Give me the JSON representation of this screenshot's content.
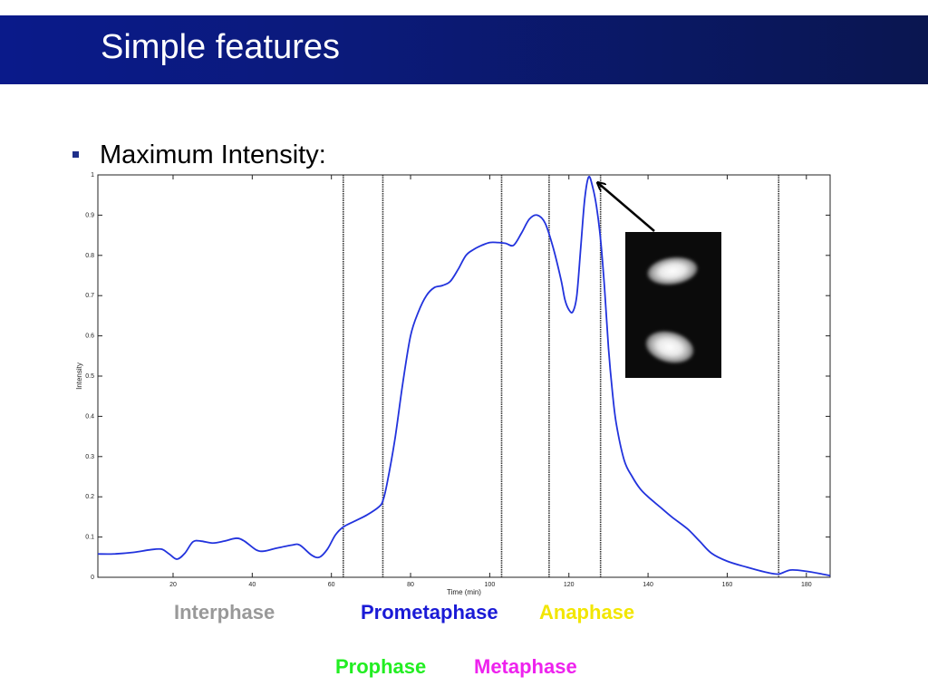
{
  "slide": {
    "title": "Simple features",
    "bullet": "Maximum Intensity:"
  },
  "colors": {
    "title_bar": "#0b1a7c",
    "curve": "#2233dd",
    "phase_lines": "#333333"
  },
  "phases": [
    {
      "label": "Interphase",
      "color": "#999999"
    },
    {
      "label": "Prometaphase",
      "color": "#1a1ad6"
    },
    {
      "label": "Anaphase",
      "color": "#f2e600"
    },
    {
      "label": "Prophase",
      "color": "#22ee22"
    },
    {
      "label": "Metaphase",
      "color": "#ee22ee"
    }
  ],
  "inset": {
    "icon": "cell-image-icon"
  },
  "chart_data": {
    "type": "line",
    "title": "",
    "xlabel": "Time (min)",
    "ylabel": "Intensity",
    "xlim": [
      1,
      186
    ],
    "ylim": [
      0,
      1
    ],
    "x_ticks": [
      20,
      40,
      60,
      80,
      100,
      120,
      140,
      160,
      180
    ],
    "y_ticks": [
      0,
      0.1,
      0.2,
      0.3,
      0.4,
      0.5,
      0.6,
      0.7,
      0.8,
      0.9,
      1
    ],
    "grid": false,
    "phase_boundaries": [
      63,
      73,
      103,
      115,
      128,
      173
    ],
    "series": [
      {
        "x": [
          1,
          5,
          10,
          14,
          17,
          19,
          21,
          23,
          25,
          27,
          30,
          33,
          36,
          38,
          41,
          43,
          46,
          50,
          52,
          55,
          57,
          59,
          61,
          63,
          66,
          69,
          72,
          73,
          74,
          76,
          78,
          80,
          82,
          84,
          86,
          88,
          90,
          92,
          94,
          96,
          98,
          100,
          102,
          104,
          106,
          108,
          110,
          112,
          114,
          116,
          118,
          119,
          120,
          121,
          122,
          123,
          124,
          125,
          126,
          127,
          128,
          129,
          130,
          131,
          132,
          134,
          136,
          138,
          140,
          143,
          146,
          150,
          153,
          156,
          160,
          165,
          170,
          173,
          176,
          180,
          184,
          186
        ],
        "y": [
          0.058,
          0.058,
          0.062,
          0.068,
          0.07,
          0.058,
          0.045,
          0.06,
          0.088,
          0.09,
          0.085,
          0.09,
          0.097,
          0.09,
          0.068,
          0.065,
          0.072,
          0.08,
          0.08,
          0.055,
          0.05,
          0.07,
          0.105,
          0.125,
          0.14,
          0.155,
          0.175,
          0.19,
          0.23,
          0.34,
          0.48,
          0.6,
          0.66,
          0.7,
          0.72,
          0.725,
          0.735,
          0.765,
          0.8,
          0.815,
          0.825,
          0.832,
          0.832,
          0.83,
          0.825,
          0.855,
          0.89,
          0.9,
          0.88,
          0.82,
          0.74,
          0.69,
          0.665,
          0.66,
          0.7,
          0.82,
          0.94,
          0.995,
          0.97,
          0.92,
          0.84,
          0.72,
          0.57,
          0.46,
          0.38,
          0.29,
          0.25,
          0.22,
          0.2,
          0.175,
          0.15,
          0.12,
          0.09,
          0.06,
          0.04,
          0.025,
          0.012,
          0.008,
          0.018,
          0.015,
          0.008,
          0.004
        ]
      }
    ]
  }
}
